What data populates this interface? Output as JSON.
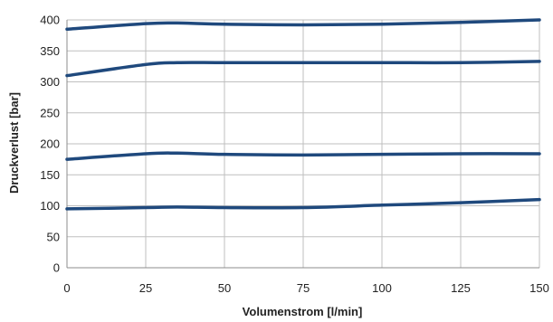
{
  "chart_data": {
    "type": "line",
    "title": "",
    "xlabel": "Volumenstrom [l/min]",
    "ylabel": "Druckverlust [bar]",
    "xlim": [
      0,
      150
    ],
    "ylim": [
      0,
      400
    ],
    "x_ticks": [
      0,
      25,
      50,
      75,
      100,
      125,
      150
    ],
    "y_ticks": [
      0,
      50,
      100,
      150,
      200,
      250,
      300,
      350,
      400
    ],
    "x_tick_labels": [
      "0",
      "25",
      "50",
      "75",
      "100",
      "125",
      "150"
    ],
    "y_tick_labels": [
      "0",
      "50",
      "100",
      "150",
      "200",
      "250",
      "300",
      "350",
      "400"
    ],
    "grid": true,
    "legend": "none",
    "line_color": "#1F497D",
    "grid_color": "#BFBFBF",
    "series": [
      {
        "x": [
          0,
          25,
          35,
          50,
          75,
          100,
          125,
          150
        ],
        "values": [
          385,
          394,
          395,
          393,
          392,
          393,
          396,
          400
        ]
      },
      {
        "x": [
          0,
          25,
          35,
          50,
          75,
          100,
          125,
          150
        ],
        "values": [
          310,
          328,
          331,
          331,
          331,
          331,
          331,
          333
        ]
      },
      {
        "x": [
          0,
          25,
          35,
          50,
          75,
          100,
          125,
          150
        ],
        "values": [
          175,
          184,
          185,
          183,
          182,
          183,
          184,
          184
        ]
      },
      {
        "x": [
          0,
          25,
          35,
          50,
          75,
          100,
          125,
          150
        ],
        "values": [
          95,
          97,
          98,
          97,
          97,
          101,
          105,
          110
        ]
      }
    ]
  }
}
